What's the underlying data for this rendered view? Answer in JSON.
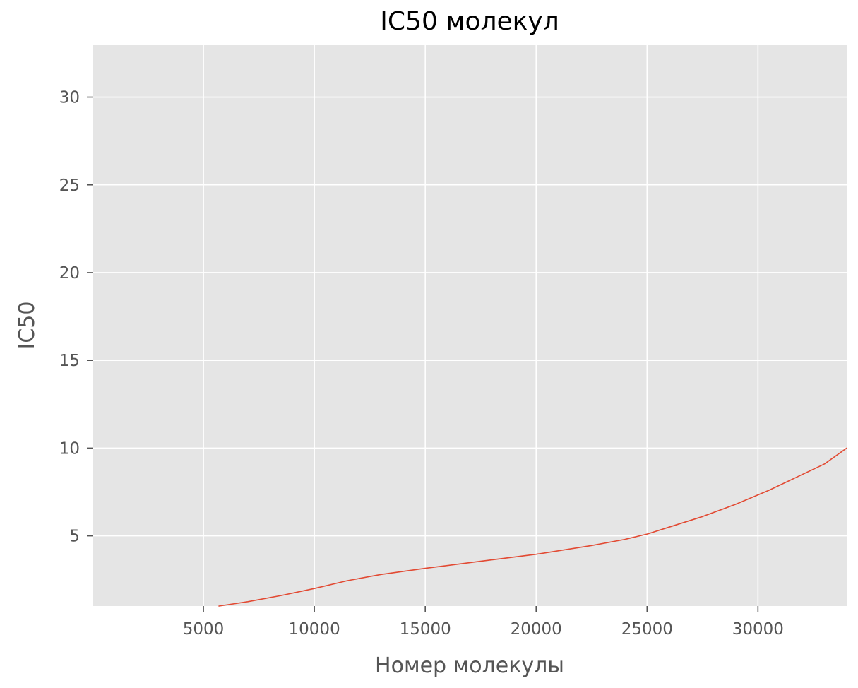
{
  "chart_data": {
    "type": "line",
    "title": "IC50 молекул",
    "xlabel": "Номер молекулы",
    "ylabel": "IC50",
    "xlim": [
      0,
      34000
    ],
    "ylim": [
      1,
      33
    ],
    "xticks": [
      5000,
      10000,
      15000,
      20000,
      25000,
      30000
    ],
    "yticks": [
      5,
      10,
      15,
      20,
      25,
      30
    ],
    "xtick_labels": [
      "5000",
      "10000",
      "15000",
      "20000",
      "25000",
      "30000"
    ],
    "ytick_labels": [
      "5",
      "10",
      "15",
      "20",
      "25",
      "30"
    ],
    "grid": true,
    "style": "ggplot",
    "colors": {
      "plot_background": "#e5e5e5",
      "grid": "#ffffff",
      "line": "#e24a33",
      "tick_label": "#555555",
      "title": "#000000"
    },
    "series": [
      {
        "x": [
          5700,
          7000,
          8500,
          10000,
          11500,
          13000,
          15000,
          17500,
          20000,
          22500,
          24000,
          25000,
          26000,
          27500,
          29000,
          30500,
          32000,
          33000,
          34000
        ],
        "y": [
          1.0,
          1.25,
          1.6,
          2.0,
          2.45,
          2.8,
          3.15,
          3.55,
          3.95,
          4.45,
          4.8,
          5.1,
          5.5,
          6.1,
          6.8,
          7.6,
          8.5,
          9.1,
          10.0
        ]
      }
    ]
  }
}
